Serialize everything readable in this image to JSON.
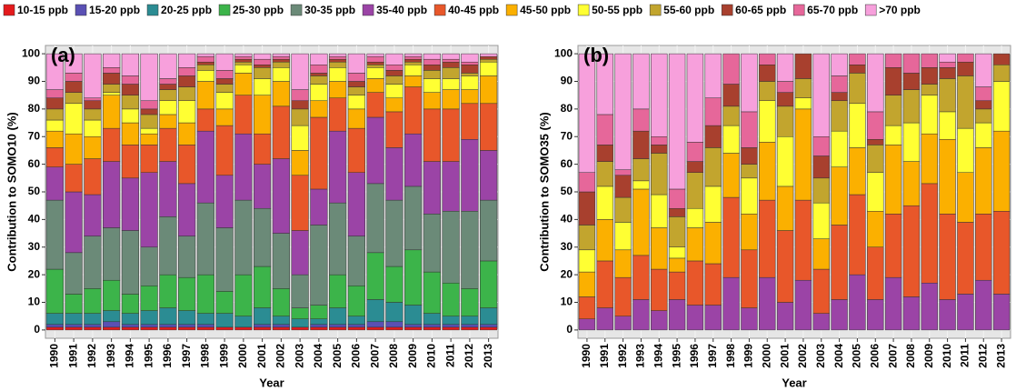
{
  "chart_data": [
    {
      "type": "stacked-bar",
      "label": "(a)",
      "x_label": "Year",
      "y_label": "Contribution to SOMO10 (%)",
      "categories": [
        "1990",
        "1991",
        "1992",
        "1993",
        "1994",
        "1995",
        "1996",
        "1997",
        "1998",
        "1999",
        "2000",
        "2001",
        "2002",
        "2003",
        "2004",
        "2005",
        "2006",
        "2007",
        "2008",
        "2009",
        "2010",
        "2011",
        "2012",
        "2013"
      ],
      "ylim": [
        -3,
        103
      ],
      "yticks": [
        0,
        10,
        20,
        30,
        40,
        50,
        60,
        70,
        80,
        90,
        100
      ],
      "grid": true,
      "series": [
        {
          "name": "10-15 ppb",
          "color": "#e41a1c",
          "values": [
            1,
            1,
            1,
            1,
            1,
            1,
            1,
            1,
            1,
            1,
            1,
            1,
            1,
            1,
            1,
            1,
            1,
            1,
            1,
            1,
            1,
            1,
            1,
            1
          ]
        },
        {
          "name": "15-20 ppb",
          "color": "#5a50b4",
          "values": [
            1,
            1,
            1,
            2,
            1,
            1,
            1,
            1,
            1,
            0,
            0,
            1,
            1,
            0,
            1,
            1,
            1,
            2,
            2,
            1,
            1,
            1,
            1,
            1
          ]
        },
        {
          "name": "20-25 ppb",
          "color": "#2b8c93",
          "values": [
            4,
            4,
            4,
            4,
            4,
            5,
            6,
            5,
            4,
            5,
            4,
            6,
            3,
            3,
            2,
            6,
            3,
            8,
            7,
            7,
            4,
            3,
            3,
            6
          ]
        },
        {
          "name": "25-30 ppb",
          "color": "#3cb44a",
          "values": [
            16,
            7,
            9,
            11,
            7,
            9,
            12,
            12,
            14,
            8,
            15,
            15,
            10,
            4,
            5,
            12,
            11,
            17,
            13,
            20,
            15,
            12,
            10,
            17
          ]
        },
        {
          "name": "30-35 ppb",
          "color": "#6b8a78",
          "values": [
            25,
            15,
            19,
            19,
            23,
            14,
            21,
            15,
            26,
            23,
            27,
            21,
            20,
            12,
            29,
            26,
            18,
            25,
            24,
            23,
            21,
            26,
            28,
            22
          ]
        },
        {
          "name": "35-40 ppb",
          "color": "#9b44a6",
          "values": [
            12,
            22,
            15,
            24,
            19,
            27,
            20,
            19,
            26,
            19,
            24,
            16,
            27,
            16,
            13,
            26,
            23,
            24,
            19,
            19,
            19,
            18,
            26,
            18
          ]
        },
        {
          "name": "40-45 ppb",
          "color": "#e8572a",
          "values": [
            7,
            10,
            13,
            12,
            12,
            10,
            12,
            14,
            8,
            18,
            14,
            11,
            19,
            20,
            26,
            12,
            16,
            9,
            13,
            17,
            19,
            19,
            13,
            17
          ]
        },
        {
          "name": "45-50 ppb",
          "color": "#fbb000",
          "values": [
            6,
            11,
            8,
            12,
            8,
            4,
            5,
            8,
            10,
            6,
            8,
            14,
            9,
            9,
            6,
            6,
            7,
            5,
            5,
            4,
            6,
            7,
            5,
            10
          ]
        },
        {
          "name": "50-55 ppb",
          "color": "#ffff33",
          "values": [
            4,
            11,
            6,
            1,
            5,
            2,
            5,
            8,
            4,
            6,
            3,
            6,
            5,
            9,
            6,
            5,
            5,
            4,
            5,
            4,
            5,
            4,
            5,
            5
          ]
        },
        {
          "name": "55-60 ppb",
          "color": "#c2a52e",
          "values": [
            4,
            4,
            4,
            3,
            5,
            5,
            4,
            5,
            2,
            3,
            1,
            4,
            2,
            6,
            3,
            2,
            3,
            1,
            3,
            1,
            3,
            4,
            1,
            1
          ]
        },
        {
          "name": "60-65 ppb",
          "color": "#a8402e",
          "values": [
            4,
            4,
            3,
            4,
            4,
            2,
            2,
            4,
            1,
            2,
            1,
            1,
            1,
            3,
            1,
            1,
            2,
            1,
            2,
            1,
            2,
            2,
            3,
            1
          ]
        },
        {
          "name": "65-70 ppb",
          "color": "#e6679a",
          "values": [
            3,
            3,
            1,
            2,
            3,
            3,
            2,
            3,
            2,
            3,
            1,
            2,
            1,
            4,
            3,
            1,
            3,
            2,
            2,
            1,
            2,
            1,
            1,
            0
          ]
        },
        {
          "name": ">70 ppb",
          "color": "#f7a0dc",
          "values": [
            13,
            7,
            16,
            5,
            8,
            17,
            9,
            5,
            1,
            6,
            1,
            2,
            1,
            13,
            4,
            1,
            7,
            1,
            4,
            1,
            2,
            2,
            3,
            1
          ]
        }
      ]
    },
    {
      "type": "stacked-bar",
      "label": "(b)",
      "x_label": "Year",
      "y_label": "Contribution to SOMO35 (%)",
      "categories": [
        "1990",
        "1991",
        "1992",
        "1993",
        "1994",
        "1995",
        "1996",
        "1997",
        "1998",
        "1999",
        "2000",
        "2001",
        "2002",
        "2003",
        "2004",
        "2005",
        "2006",
        "2007",
        "2008",
        "2009",
        "2010",
        "2011",
        "2012",
        "2013"
      ],
      "ylim": [
        -3,
        103
      ],
      "yticks": [
        0,
        10,
        20,
        30,
        40,
        50,
        60,
        70,
        80,
        90,
        100
      ],
      "grid": true,
      "series": [
        {
          "name": "35-40 ppb",
          "color": "#9b44a6",
          "values": [
            4,
            8,
            5,
            11,
            7,
            11,
            9,
            9,
            19,
            8,
            19,
            10,
            18,
            6,
            11,
            20,
            11,
            19,
            12,
            17,
            11,
            13,
            18,
            13
          ]
        },
        {
          "name": "40-45 ppb",
          "color": "#e8572a",
          "values": [
            8,
            17,
            14,
            16,
            15,
            10,
            16,
            15,
            29,
            21,
            28,
            26,
            29,
            16,
            27,
            29,
            19,
            23,
            33,
            36,
            31,
            26,
            24,
            30
          ]
        },
        {
          "name": "45-50 ppb",
          "color": "#fbb000",
          "values": [
            9,
            15,
            10,
            24,
            15,
            5,
            12,
            15,
            16,
            13,
            21,
            16,
            33,
            11,
            21,
            17,
            13,
            25,
            16,
            18,
            27,
            18,
            24,
            29
          ]
        },
        {
          "name": "50-55 ppb",
          "color": "#ffff33",
          "values": [
            8,
            12,
            10,
            3,
            12,
            4,
            7,
            13,
            10,
            13,
            15,
            18,
            4,
            13,
            13,
            16,
            14,
            7,
            14,
            14,
            10,
            16,
            9,
            18
          ]
        },
        {
          "name": "55-60 ppb",
          "color": "#c2a52e",
          "values": [
            9,
            9,
            9,
            8,
            15,
            11,
            13,
            14,
            7,
            5,
            7,
            11,
            7,
            9,
            11,
            11,
            10,
            11,
            12,
            4,
            12,
            19,
            5,
            6
          ]
        },
        {
          "name": "60-65 ppb",
          "color": "#a8402e",
          "values": [
            12,
            6,
            8,
            10,
            3,
            3,
            4,
            8,
            8,
            6,
            6,
            5,
            9,
            8,
            3,
            3,
            2,
            10,
            6,
            6,
            4,
            5,
            3,
            4
          ]
        },
        {
          "name": "65-70 ppb",
          "color": "#e6679a",
          "values": [
            7,
            11,
            2,
            8,
            3,
            7,
            7,
            10,
            11,
            13,
            4,
            4,
            0,
            7,
            6,
            4,
            10,
            5,
            7,
            5,
            2,
            3,
            5,
            0
          ]
        },
        {
          "name": ">70 ppb",
          "color": "#f7a0dc",
          "values": [
            43,
            22,
            42,
            20,
            30,
            49,
            32,
            16,
            0,
            21,
            0,
            10,
            0,
            30,
            8,
            0,
            21,
            0,
            0,
            0,
            3,
            0,
            12,
            0
          ]
        }
      ]
    }
  ]
}
